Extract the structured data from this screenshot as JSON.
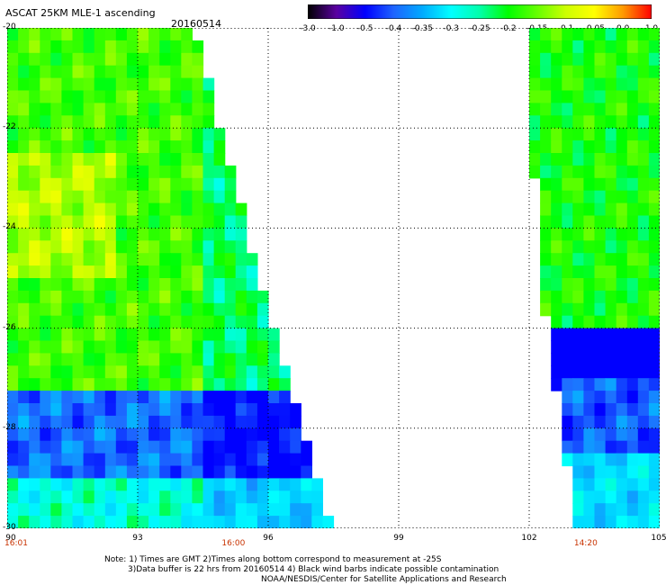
{
  "header": {
    "title": "ASCAT 25KM MLE-1 ascending",
    "date": "20160514"
  },
  "colorbar": {
    "labels": [
      "-3.0",
      "-1.0",
      "-0.5",
      "-0.4",
      "-0.35",
      "-0.3",
      "-0.25",
      "-0.2",
      "-0.15",
      "-0.1",
      "-0.05",
      "0.0",
      "1.0"
    ],
    "colors": [
      "#000000",
      "#5a00a0",
      "#0000ff",
      "#1e64ff",
      "#00aaff",
      "#00ffff",
      "#00ffaa",
      "#00ff00",
      "#66ff00",
      "#ccff00",
      "#ffff00",
      "#ff9900",
      "#ff0000"
    ]
  },
  "map": {
    "lat_labels": [
      "-20",
      "-22",
      "-24",
      "-26",
      "-28",
      "-30"
    ],
    "lon_labels": [
      "90",
      "93",
      "96",
      "99",
      "102",
      "105"
    ],
    "lat_range": [
      -30,
      -20
    ],
    "lon_range": [
      90,
      105
    ],
    "time_labels": [
      {
        "text": "16:01",
        "lon": 90
      },
      {
        "text": "16:00",
        "lon": 95.2
      },
      {
        "text": "14:20",
        "lon": 103.3
      }
    ],
    "swaths": [
      {
        "name": "west-swath",
        "east_edge": [
          [
            -20,
            94.3
          ],
          [
            -26,
            96.1
          ],
          [
            -30,
            97.5
          ]
        ]
      },
      {
        "name": "east-swath",
        "west_edge": [
          [
            -20,
            101.9
          ],
          [
            -24,
            102.2
          ],
          [
            -26,
            102.4
          ],
          [
            -30,
            103.1
          ]
        ]
      }
    ]
  },
  "notes": {
    "line1": "Note: 1) Times are GMT 2)Times along bottom correspond to measurement at -25S",
    "line2": "3)Data buffer is 22 hrs from 20160514 4) Black wind barbs indicate possible contamination",
    "line3": "NOAA/NESDIS/Center for Satellite Applications and Research"
  }
}
